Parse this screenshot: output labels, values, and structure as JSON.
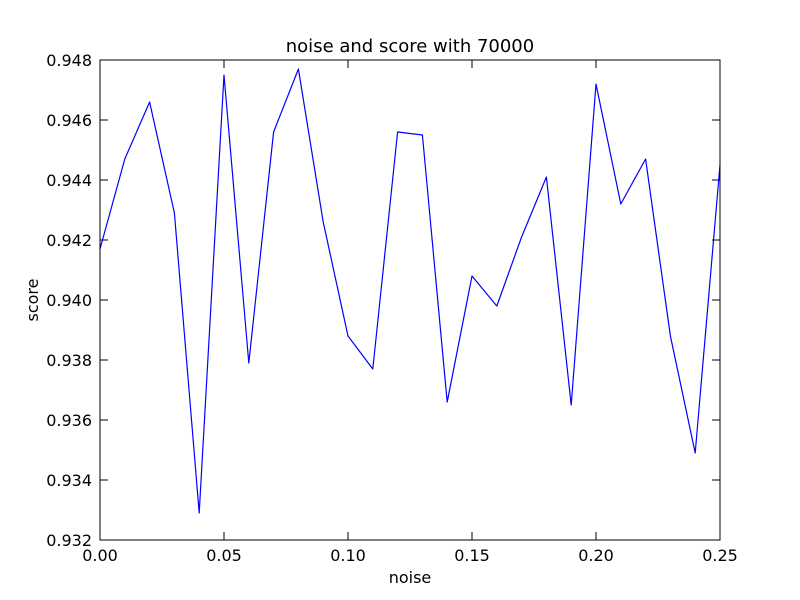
{
  "chart_data": {
    "type": "line",
    "title": "noise and score with 70000",
    "xlabel": "noise",
    "ylabel": "score",
    "xlim": [
      0.0,
      0.25
    ],
    "ylim": [
      0.932,
      0.948
    ],
    "xticks": [
      "0.00",
      "0.05",
      "0.10",
      "0.15",
      "0.20",
      "0.25"
    ],
    "yticks": [
      "0.932",
      "0.934",
      "0.936",
      "0.938",
      "0.940",
      "0.942",
      "0.944",
      "0.946",
      "0.948"
    ],
    "grid": false,
    "line_color": "#0000ff",
    "series": [
      {
        "x": [
          0.0,
          0.01,
          0.02,
          0.03,
          0.04,
          0.05,
          0.06,
          0.07,
          0.08,
          0.09,
          0.1,
          0.11,
          0.12,
          0.13,
          0.14,
          0.15,
          0.16,
          0.17,
          0.18,
          0.19,
          0.2,
          0.21,
          0.22,
          0.23,
          0.24,
          0.25
        ],
        "values": [
          0.9417,
          0.9447,
          0.9466,
          0.9429,
          0.9329,
          0.9475,
          0.9379,
          0.9456,
          0.9477,
          0.9426,
          0.9388,
          0.9377,
          0.9456,
          0.9455,
          0.9366,
          0.9408,
          0.9398,
          0.9421,
          0.9441,
          0.9365,
          0.9472,
          0.9432,
          0.9447,
          0.9388,
          0.9349,
          0.9445
        ]
      }
    ]
  }
}
